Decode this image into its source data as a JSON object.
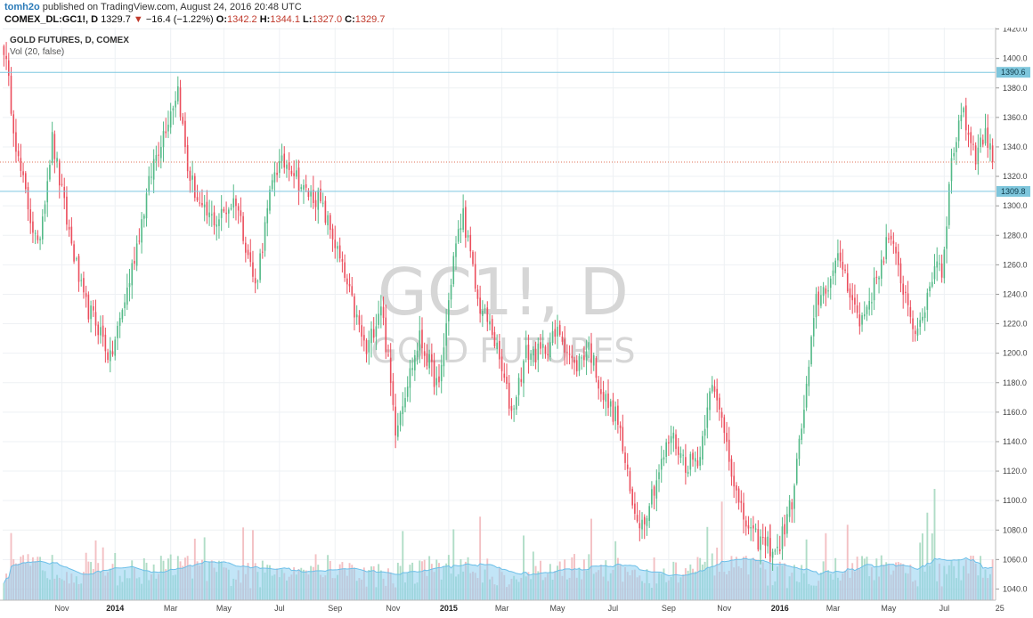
{
  "header": {
    "author": "tomh2o",
    "published": " published on TradingView.com, August 24, 2016 20:48 UTC",
    "symbol": "COMEX_DL:GC1!, D",
    "last": "1329.7",
    "change_arrow": "▼",
    "change": "−16.4 (−1.22%)",
    "open_label": "O:",
    "open": "1342.2",
    "high_label": "H:",
    "high": "1344.1",
    "low_label": "L:",
    "low": "1327.0",
    "close_label": "C:",
    "close": "1329.7"
  },
  "legend": {
    "title": "GOLD FUTURES, D, COMEX",
    "volume": "Vol (20, false)"
  },
  "watermark": {
    "symbol": "GC1!, D",
    "name": "GOLD FUTURES"
  },
  "colors": {
    "up": "#53b987",
    "down": "#eb4d5c",
    "hline": "#7fc8e0",
    "last_line": "#e0735a",
    "grid": "#eef1f4",
    "vol_up": "#a7d9c1",
    "vol_down": "#f2b9bd",
    "vol_ma": "#8fd0f0"
  },
  "chart_data": {
    "type": "candlestick",
    "title": "GOLD FUTURES, D, COMEX",
    "ylim": [
      1030,
      1430
    ],
    "y_ticks": [
      1040,
      1060,
      1080,
      1100,
      1120,
      1140,
      1160,
      1180,
      1200,
      1220,
      1240,
      1260,
      1280,
      1300,
      1320,
      1340,
      1360,
      1380,
      1400,
      1420
    ],
    "x_ticks": [
      {
        "label": "Nov",
        "idx": 24,
        "bold": false
      },
      {
        "label": "2014",
        "idx": 46,
        "bold": true
      },
      {
        "label": "Mar",
        "idx": 69,
        "bold": false
      },
      {
        "label": "May",
        "idx": 91,
        "bold": false
      },
      {
        "label": "Jul",
        "idx": 114,
        "bold": false
      },
      {
        "label": "Sep",
        "idx": 137,
        "bold": false
      },
      {
        "label": "Nov",
        "idx": 161,
        "bold": false
      },
      {
        "label": "2015",
        "idx": 184,
        "bold": true
      },
      {
        "label": "Mar",
        "idx": 206,
        "bold": false
      },
      {
        "label": "May",
        "idx": 229,
        "bold": false
      },
      {
        "label": "Jul",
        "idx": 252,
        "bold": false
      },
      {
        "label": "Sep",
        "idx": 275,
        "bold": false
      },
      {
        "label": "Nov",
        "idx": 298,
        "bold": false
      },
      {
        "label": "2016",
        "idx": 321,
        "bold": true
      },
      {
        "label": "Mar",
        "idx": 343,
        "bold": false
      },
      {
        "label": "May",
        "idx": 366,
        "bold": false
      },
      {
        "label": "Jul",
        "idx": 389,
        "bold": false
      },
      {
        "label": "25",
        "idx": 412,
        "bold": false
      }
    ],
    "bars": 410,
    "close_anchors": [
      [
        0,
        1408
      ],
      [
        6,
        1330
      ],
      [
        14,
        1270
      ],
      [
        20,
        1345
      ],
      [
        26,
        1290
      ],
      [
        33,
        1235
      ],
      [
        40,
        1215
      ],
      [
        44,
        1195
      ],
      [
        52,
        1250
      ],
      [
        62,
        1330
      ],
      [
        68,
        1360
      ],
      [
        72,
        1380
      ],
      [
        76,
        1325
      ],
      [
        82,
        1295
      ],
      [
        88,
        1290
      ],
      [
        96,
        1305
      ],
      [
        104,
        1245
      ],
      [
        112,
        1325
      ],
      [
        118,
        1330
      ],
      [
        124,
        1310
      ],
      [
        130,
        1305
      ],
      [
        136,
        1280
      ],
      [
        142,
        1245
      ],
      [
        150,
        1200
      ],
      [
        156,
        1235
      ],
      [
        162,
        1150
      ],
      [
        166,
        1175
      ],
      [
        172,
        1210
      ],
      [
        180,
        1175
      ],
      [
        186,
        1265
      ],
      [
        190,
        1295
      ],
      [
        196,
        1235
      ],
      [
        202,
        1215
      ],
      [
        210,
        1160
      ],
      [
        216,
        1200
      ],
      [
        222,
        1200
      ],
      [
        230,
        1215
      ],
      [
        236,
        1190
      ],
      [
        242,
        1205
      ],
      [
        248,
        1170
      ],
      [
        254,
        1155
      ],
      [
        260,
        1095
      ],
      [
        264,
        1085
      ],
      [
        270,
        1115
      ],
      [
        276,
        1145
      ],
      [
        282,
        1125
      ],
      [
        288,
        1130
      ],
      [
        292,
        1180
      ],
      [
        298,
        1150
      ],
      [
        304,
        1095
      ],
      [
        310,
        1075
      ],
      [
        316,
        1070
      ],
      [
        320,
        1065
      ],
      [
        326,
        1100
      ],
      [
        332,
        1175
      ],
      [
        336,
        1235
      ],
      [
        342,
        1250
      ],
      [
        346,
        1265
      ],
      [
        354,
        1220
      ],
      [
        360,
        1245
      ],
      [
        366,
        1280
      ],
      [
        372,
        1245
      ],
      [
        378,
        1210
      ],
      [
        382,
        1240
      ],
      [
        386,
        1265
      ],
      [
        388,
        1255
      ],
      [
        392,
        1330
      ],
      [
        396,
        1365
      ],
      [
        402,
        1335
      ],
      [
        406,
        1350
      ],
      [
        409,
        1329.7
      ]
    ],
    "last_price": 1329.7,
    "horizontal_levels": [
      1390.6,
      1309.8
    ],
    "level_labels": [
      "1390.6",
      "1309.8"
    ],
    "volume_ma_length": 20
  }
}
